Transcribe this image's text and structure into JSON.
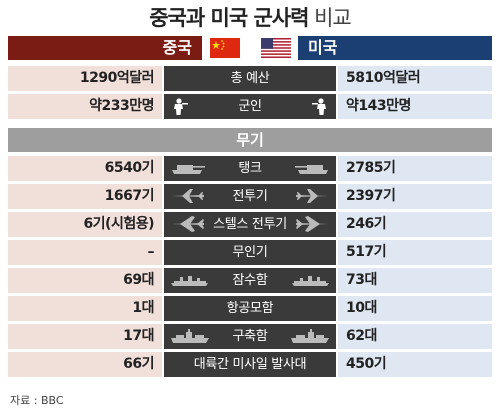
{
  "title": {
    "bold": "중국과 미국 군사력",
    "light": "비교"
  },
  "countries": {
    "china": "중국",
    "usa": "미국"
  },
  "colors": {
    "china": "#7a1c14",
    "usa": "#1b3f72",
    "china_cell": "#f1dfda",
    "usa_cell": "#dee7f2",
    "mid": "#3a3a3a",
    "section": "#9e9e9e"
  },
  "overview": [
    {
      "label": "총 예산",
      "china": "1290억달러",
      "usa": "5810억달러",
      "icon": "none"
    },
    {
      "label": "군인",
      "china": "약233만명",
      "usa": "약143만명",
      "icon": "soldier-icon"
    }
  ],
  "section_title": "무기",
  "weapons": [
    {
      "label": "탱크",
      "china": "6540기",
      "usa": "2785기",
      "icon": "tank-icon"
    },
    {
      "label": "전투기",
      "china": "1667기",
      "usa": "2397기",
      "icon": "fighter-jet-icon"
    },
    {
      "label": "스텔스 전투기",
      "china": "6기(시험용)",
      "usa": "246기",
      "icon": "stealth-jet-icon"
    },
    {
      "label": "무인기",
      "china": "–",
      "usa": "517기",
      "icon": "none"
    },
    {
      "label": "잠수함",
      "china": "69대",
      "usa": "73대",
      "icon": "submarine-icon"
    },
    {
      "label": "항공모함",
      "china": "1대",
      "usa": "10대",
      "icon": "none"
    },
    {
      "label": "구축함",
      "china": "17대",
      "usa": "62대",
      "icon": "destroyer-icon"
    },
    {
      "label": "대륙간 미사일 발사대",
      "china": "66기",
      "usa": "450기",
      "icon": "none"
    }
  ],
  "source": "자료 : BBC"
}
